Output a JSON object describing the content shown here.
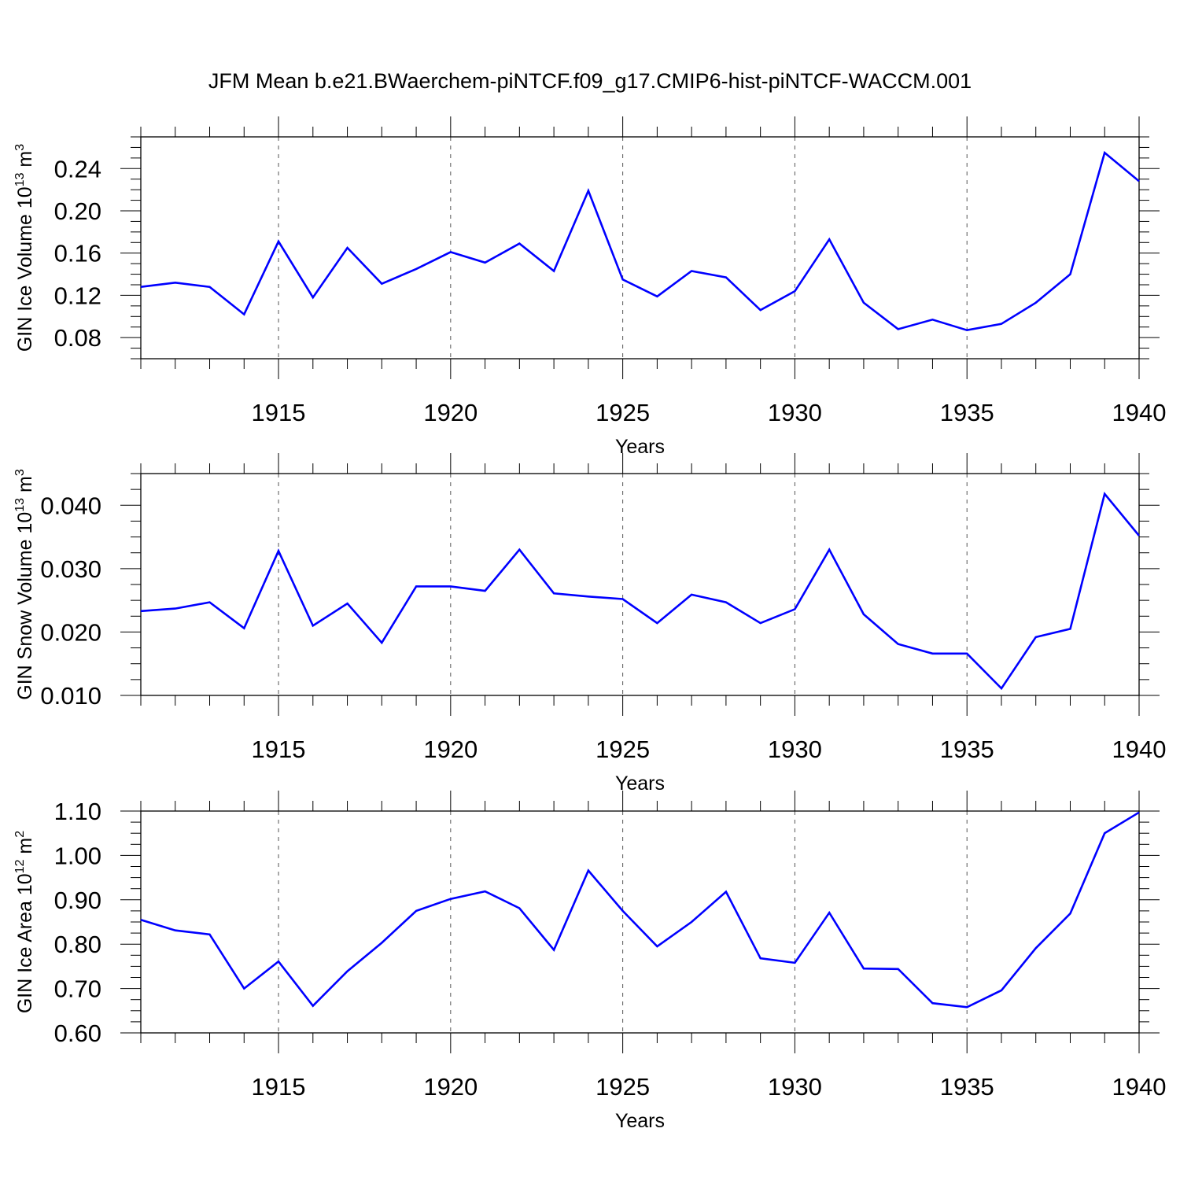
{
  "title": "JFM Mean b.e21.BWaerchem-piNTCF.f09_g17.CMIP6-hist-piNTCF-WACCM.001",
  "colors": {
    "line": "#0000ff",
    "axis": "#000000",
    "grid": "#555555",
    "background": "#ffffff"
  },
  "chart_data": [
    {
      "type": "line",
      "ylabel_main": "GIN Ice Volume 10",
      "ylabel_exp": "13",
      "ylabel_unit": " m",
      "ylabel_unit_exp": "3",
      "xlabel": "Years",
      "xlim": [
        1911,
        1940
      ],
      "ylim": [
        0.06,
        0.27
      ],
      "xticks": [
        1915,
        1920,
        1925,
        1930,
        1935,
        1940
      ],
      "xtick_labels": [
        "1915",
        "1920",
        "1925",
        "1930",
        "1935",
        "1940"
      ],
      "yticks": [
        0.08,
        0.12,
        0.16,
        0.2,
        0.24
      ],
      "ytick_labels": [
        "0.08",
        "0.12",
        "0.16",
        "0.20",
        "0.24"
      ],
      "grid": "vertical dashed at major x ticks",
      "series": [
        {
          "x": [
            1911,
            1912,
            1913,
            1914,
            1915,
            1916,
            1917,
            1918,
            1919,
            1920,
            1921,
            1922,
            1923,
            1924,
            1925,
            1926,
            1927,
            1928,
            1929,
            1930,
            1931,
            1932,
            1933,
            1934,
            1935,
            1936,
            1937,
            1938,
            1939,
            1940
          ],
          "values": [
            0.128,
            0.132,
            0.128,
            0.102,
            0.171,
            0.118,
            0.165,
            0.131,
            0.145,
            0.161,
            0.151,
            0.169,
            0.143,
            0.219,
            0.135,
            0.119,
            0.143,
            0.137,
            0.106,
            0.124,
            0.173,
            0.113,
            0.088,
            0.097,
            0.087,
            0.093,
            0.113,
            0.14,
            0.255,
            0.228
          ]
        }
      ]
    },
    {
      "type": "line",
      "ylabel_main": "GIN Snow Volume 10",
      "ylabel_exp": "13",
      "ylabel_unit": " m",
      "ylabel_unit_exp": "3",
      "xlabel": "Years",
      "xlim": [
        1911,
        1940
      ],
      "ylim": [
        0.01,
        0.045
      ],
      "xticks": [
        1915,
        1920,
        1925,
        1930,
        1935,
        1940
      ],
      "xtick_labels": [
        "1915",
        "1920",
        "1925",
        "1930",
        "1935",
        "1940"
      ],
      "yticks": [
        0.01,
        0.02,
        0.03,
        0.04
      ],
      "ytick_labels": [
        "0.010",
        "0.020",
        "0.030",
        "0.040"
      ],
      "grid": "vertical dashed at major x ticks",
      "series": [
        {
          "x": [
            1911,
            1912,
            1913,
            1914,
            1915,
            1916,
            1917,
            1918,
            1919,
            1920,
            1921,
            1922,
            1923,
            1924,
            1925,
            1926,
            1927,
            1928,
            1929,
            1930,
            1931,
            1932,
            1933,
            1934,
            1935,
            1936,
            1937,
            1938,
            1939,
            1940
          ],
          "values": [
            0.0233,
            0.0237,
            0.0247,
            0.0206,
            0.0328,
            0.021,
            0.0245,
            0.0183,
            0.0272,
            0.0272,
            0.0265,
            0.033,
            0.0261,
            0.0256,
            0.0252,
            0.0214,
            0.0259,
            0.0247,
            0.0214,
            0.0236,
            0.033,
            0.0228,
            0.0181,
            0.0166,
            0.0166,
            0.0111,
            0.0192,
            0.0205,
            0.0418,
            0.0352
          ]
        }
      ]
    },
    {
      "type": "line",
      "ylabel_main": "GIN Ice Area 10",
      "ylabel_exp": "12",
      "ylabel_unit": " m",
      "ylabel_unit_exp": "2",
      "xlabel": "Years",
      "xlim": [
        1911,
        1940
      ],
      "ylim": [
        0.6,
        1.1
      ],
      "xticks": [
        1915,
        1920,
        1925,
        1930,
        1935,
        1940
      ],
      "xtick_labels": [
        "1915",
        "1920",
        "1925",
        "1930",
        "1935",
        "1940"
      ],
      "yticks": [
        0.6,
        0.7,
        0.8,
        0.9,
        1.0,
        1.1
      ],
      "ytick_labels": [
        "0.60",
        "0.70",
        "0.80",
        "0.90",
        "1.00",
        "1.10"
      ],
      "grid": "vertical dashed at major x ticks",
      "series": [
        {
          "x": [
            1911,
            1912,
            1913,
            1914,
            1915,
            1916,
            1917,
            1918,
            1919,
            1920,
            1921,
            1922,
            1923,
            1924,
            1925,
            1926,
            1927,
            1928,
            1929,
            1930,
            1931,
            1932,
            1933,
            1934,
            1935,
            1936,
            1937,
            1938,
            1939,
            1940
          ],
          "values": [
            0.855,
            0.831,
            0.822,
            0.7,
            0.761,
            0.661,
            0.739,
            0.803,
            0.875,
            0.902,
            0.919,
            0.881,
            0.787,
            0.966,
            0.875,
            0.795,
            0.85,
            0.918,
            0.768,
            0.758,
            0.871,
            0.745,
            0.744,
            0.667,
            0.658,
            0.696,
            0.791,
            0.869,
            1.05,
            1.097
          ]
        }
      ]
    }
  ]
}
